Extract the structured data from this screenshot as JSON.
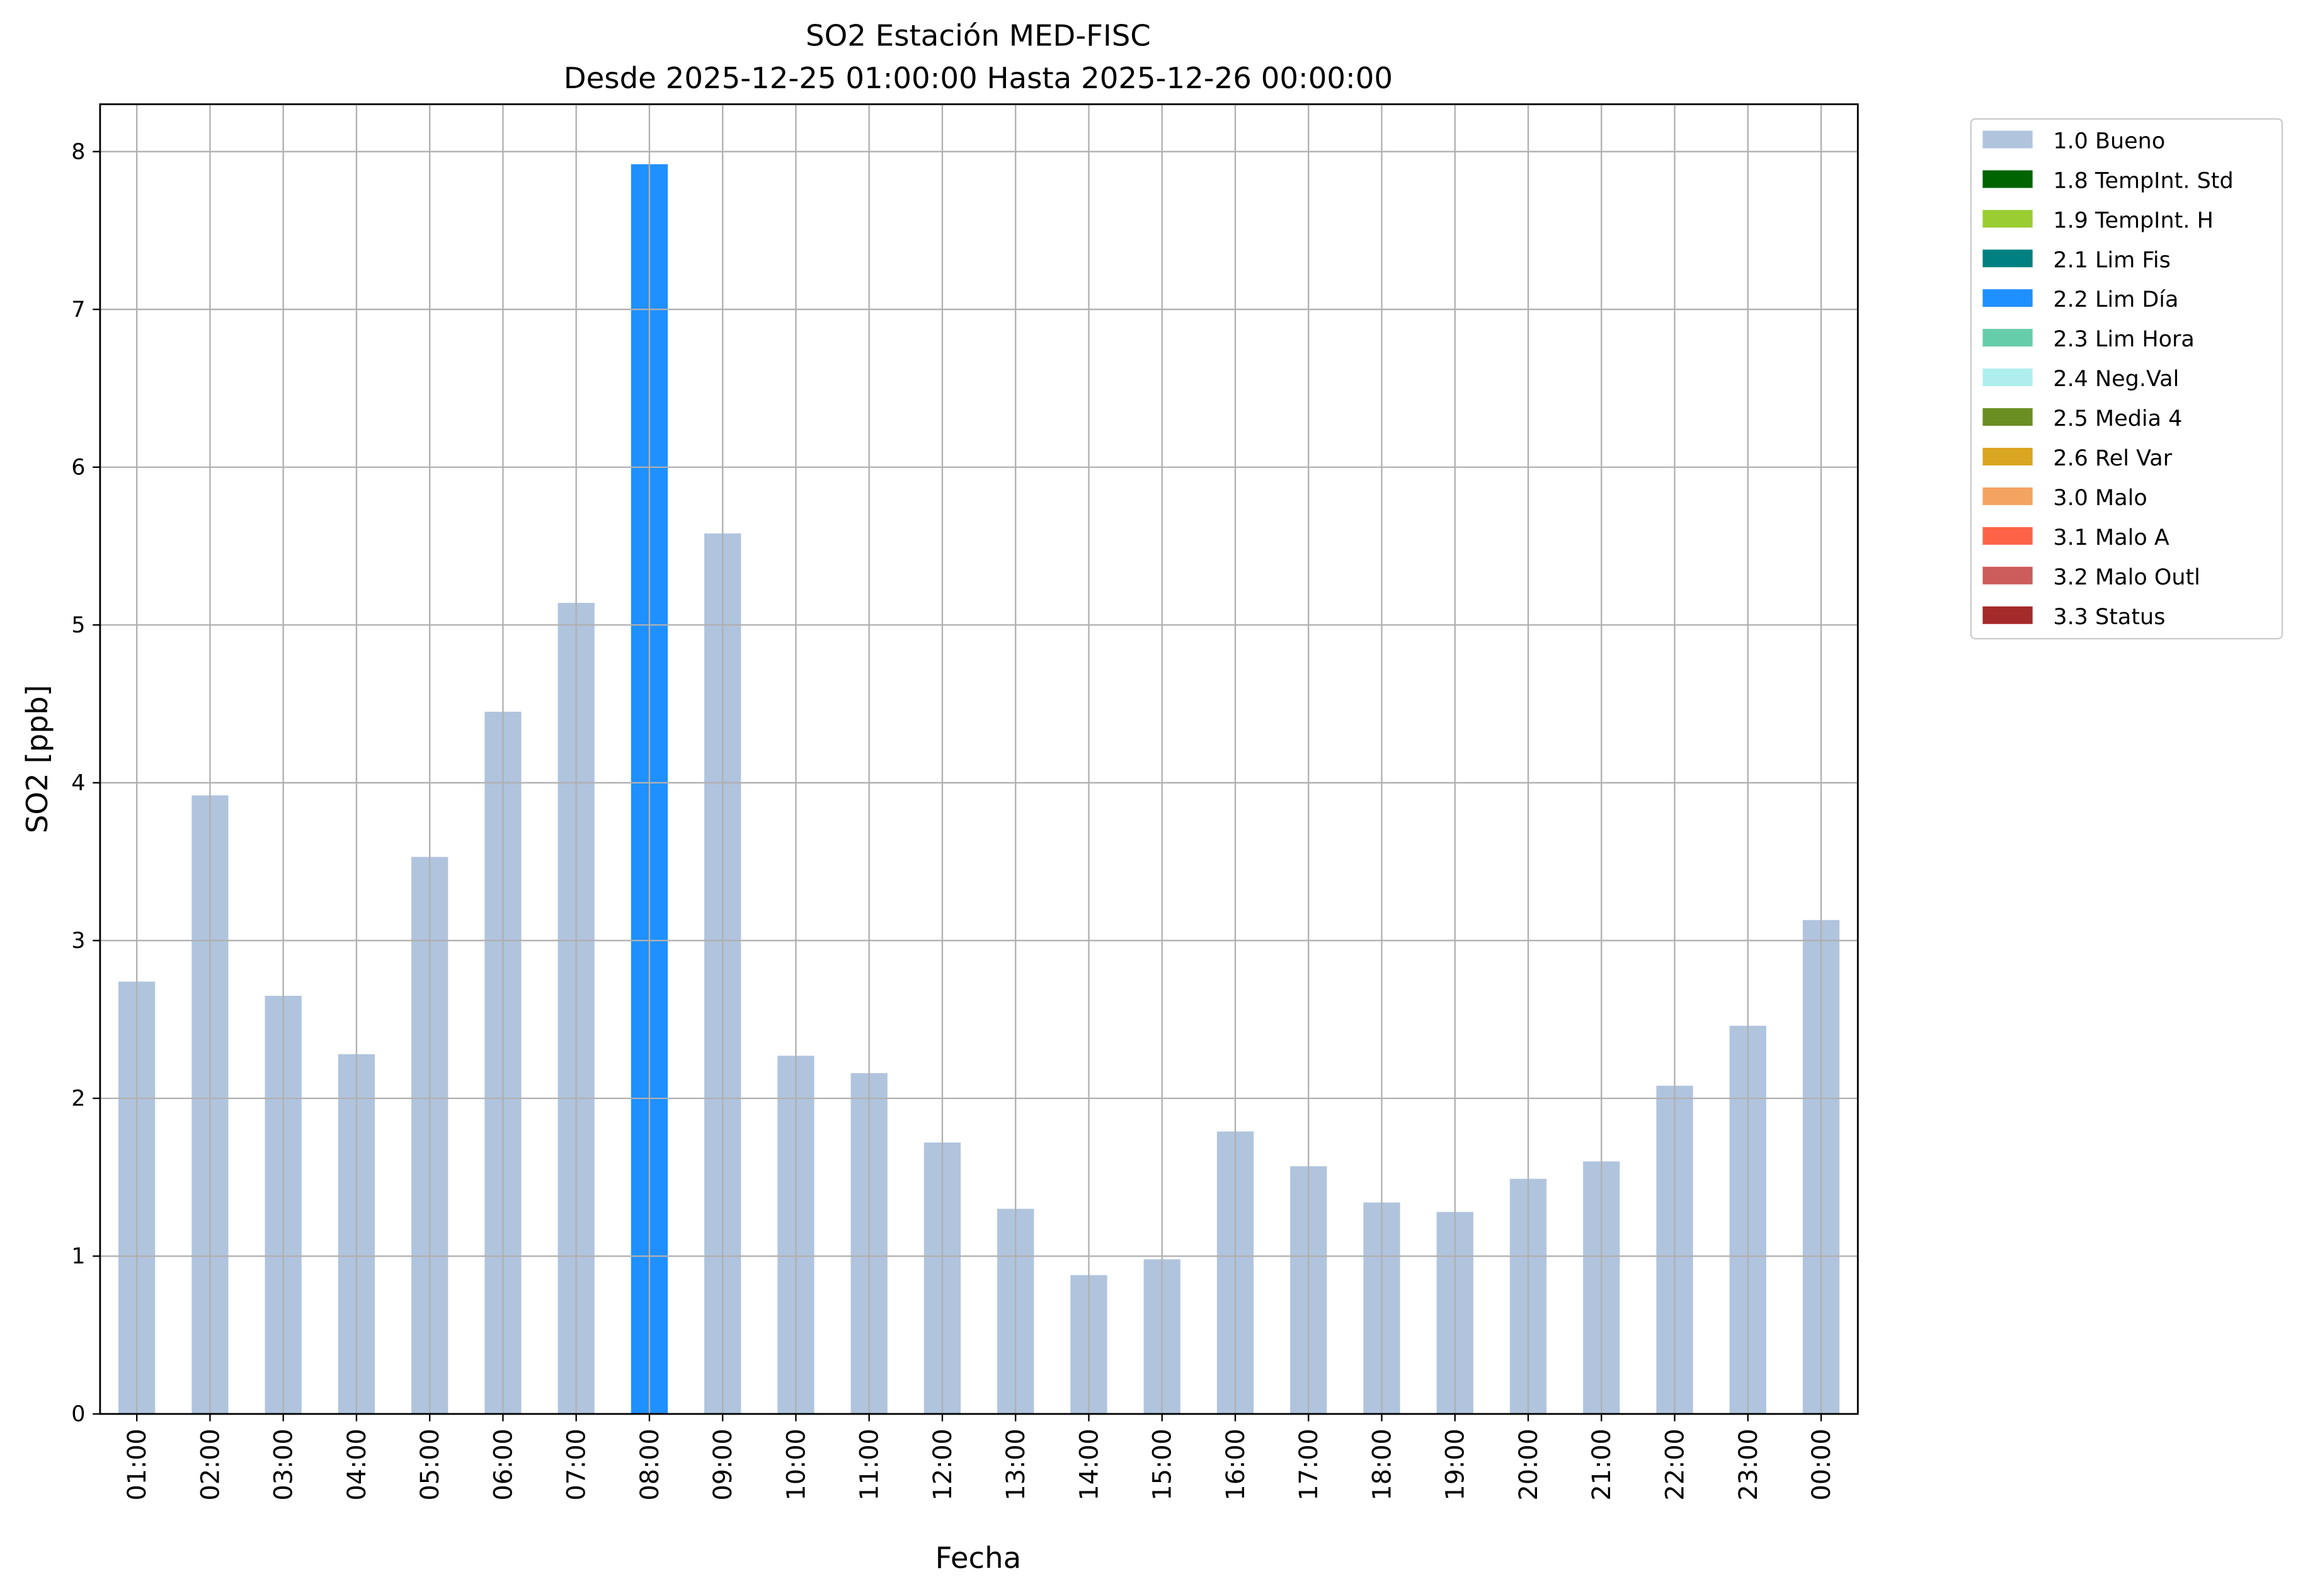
{
  "chart_data": {
    "type": "bar",
    "title": "SO2 Estación MED-FISC",
    "subtitle": "Desde 2025-12-25 01:00:00 Hasta 2025-12-26 00:00:00",
    "xlabel": "Fecha",
    "ylabel": "SO2 [ppb]",
    "ylim": [
      0,
      8.3
    ],
    "yticks": [
      "0",
      "1",
      "2",
      "3",
      "4",
      "5",
      "6",
      "7",
      "8"
    ],
    "grid": true,
    "legend_position": "outside-right-top",
    "categories": [
      "01:00",
      "02:00",
      "03:00",
      "04:00",
      "05:00",
      "06:00",
      "07:00",
      "08:00",
      "09:00",
      "10:00",
      "11:00",
      "12:00",
      "13:00",
      "14:00",
      "15:00",
      "16:00",
      "17:00",
      "18:00",
      "19:00",
      "20:00",
      "21:00",
      "22:00",
      "23:00",
      "00:00"
    ],
    "values": [
      2.74,
      3.92,
      2.65,
      2.28,
      3.53,
      4.45,
      5.14,
      7.92,
      5.58,
      2.27,
      2.16,
      1.72,
      1.3,
      0.88,
      0.98,
      1.79,
      1.57,
      1.34,
      1.28,
      1.49,
      1.6,
      2.08,
      2.46,
      3.13
    ],
    "flags": [
      "1.0 Bueno",
      "1.0 Bueno",
      "1.0 Bueno",
      "1.0 Bueno",
      "1.0 Bueno",
      "1.0 Bueno",
      "1.0 Bueno",
      "2.2 Lim Día",
      "1.0 Bueno",
      "1.0 Bueno",
      "1.0 Bueno",
      "1.0 Bueno",
      "1.0 Bueno",
      "1.0 Bueno",
      "1.0 Bueno",
      "1.0 Bueno",
      "1.0 Bueno",
      "1.0 Bueno",
      "1.0 Bueno",
      "1.0 Bueno",
      "1.0 Bueno",
      "1.0 Bueno",
      "1.0 Bueno",
      "1.0 Bueno"
    ],
    "legend": [
      {
        "label": "1.0 Bueno",
        "color": "#b0c4de"
      },
      {
        "label": "1.8 TempInt. Std",
        "color": "#006400"
      },
      {
        "label": "1.9 TempInt. H",
        "color": "#9acd32"
      },
      {
        "label": "2.1 Lim Fis",
        "color": "#008080"
      },
      {
        "label": "2.2 Lim Día",
        "color": "#1e90ff"
      },
      {
        "label": "2.3 Lim Hora",
        "color": "#66cdaa"
      },
      {
        "label": "2.4 Neg.Val",
        "color": "#afeeee"
      },
      {
        "label": "2.5 Media 4",
        "color": "#6b8e23"
      },
      {
        "label": "2.6 Rel Var",
        "color": "#daa520"
      },
      {
        "label": "3.0 Malo",
        "color": "#f4a460"
      },
      {
        "label": "3.1 Malo A",
        "color": "#ff6347"
      },
      {
        "label": "3.2 Malo Outl",
        "color": "#cd5c5c"
      },
      {
        "label": "3.3 Status",
        "color": "#a52a2a"
      }
    ]
  }
}
